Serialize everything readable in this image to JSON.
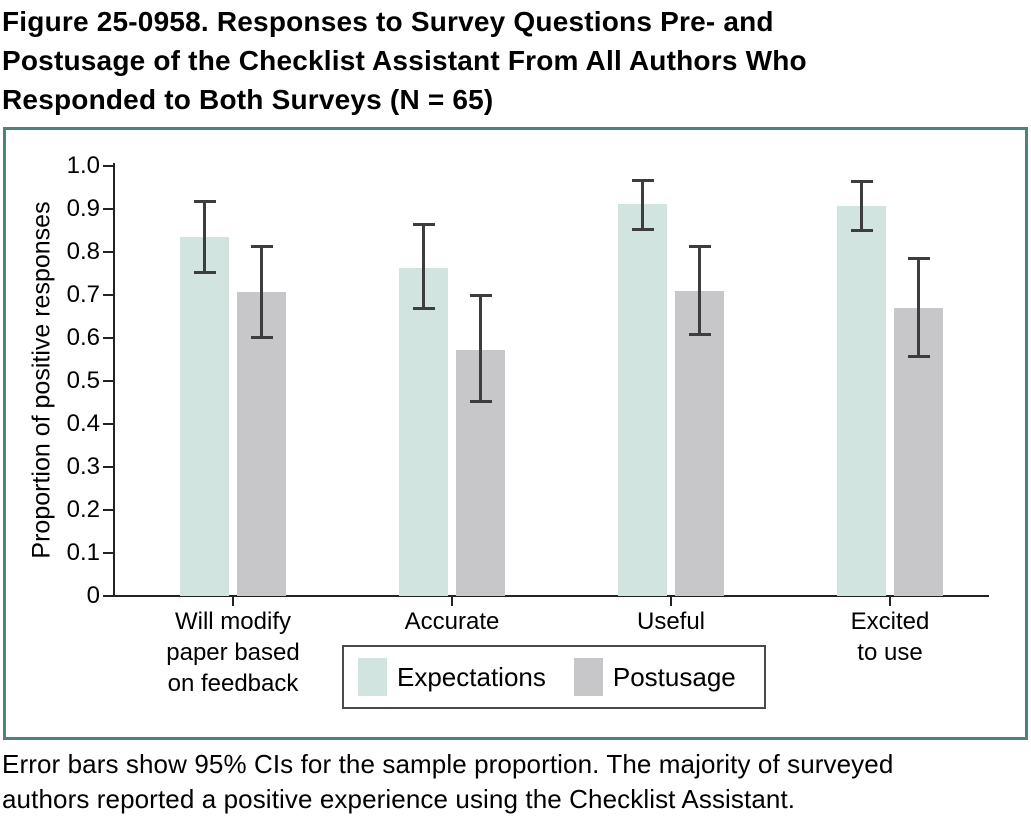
{
  "figure": {
    "title_lines": [
      "Figure 25-0958. Responses to Survey Questions Pre- and",
      "Postusage of the Checklist Assistant From All Authors Who",
      "Responded to Both Surveys (N = 65)"
    ],
    "caption_lines": [
      "Error bars show 95% CIs for the sample proportion. The majority of surveyed",
      "authors reported a positive experience using the Checklist Assistant."
    ]
  },
  "colors": {
    "panel_border": "#4e837c",
    "expectations_bar": "#d2e4e0",
    "postusage_bar": "#c7c7c9",
    "error_bar": "#3d3d3d",
    "axis": "#222222",
    "text": "#000000"
  },
  "chart_data": {
    "type": "bar",
    "title": "",
    "xlabel": "",
    "ylabel": "Proportion of positive responses",
    "ylim": [
      0,
      1.0
    ],
    "yticks": [
      0,
      0.1,
      0.2,
      0.3,
      0.4,
      0.5,
      0.6,
      0.7,
      0.8,
      0.9,
      1.0
    ],
    "ytick_labels": [
      "0",
      "0.1",
      "0.2",
      "0.3",
      "0.4",
      "0.5",
      "0.6",
      "0.7",
      "0.8",
      "0.9",
      "1.0"
    ],
    "grid": false,
    "legend_position": "bottom-center",
    "error_bars": "95% CI",
    "categories": [
      "Will modify paper based on feedback",
      "Accurate",
      "Useful",
      "Excited to use"
    ],
    "category_label_lines": [
      [
        "Will modify",
        "paper based",
        "on feedback"
      ],
      [
        "Accurate"
      ],
      [
        "Useful"
      ],
      [
        "Excited",
        "to use"
      ]
    ],
    "series": [
      {
        "name": "Expectations",
        "color": "#d2e4e0",
        "values": [
          0.835,
          0.763,
          0.912,
          0.906
        ],
        "ci_low": [
          0.752,
          0.667,
          0.852,
          0.849
        ],
        "ci_high": [
          0.918,
          0.865,
          0.968,
          0.964
        ]
      },
      {
        "name": "Postusage",
        "color": "#c7c7c9",
        "values": [
          0.708,
          0.572,
          0.709,
          0.67
        ],
        "ci_low": [
          0.6,
          0.451,
          0.606,
          0.556
        ],
        "ci_high": [
          0.814,
          0.7,
          0.813,
          0.786
        ]
      }
    ]
  }
}
